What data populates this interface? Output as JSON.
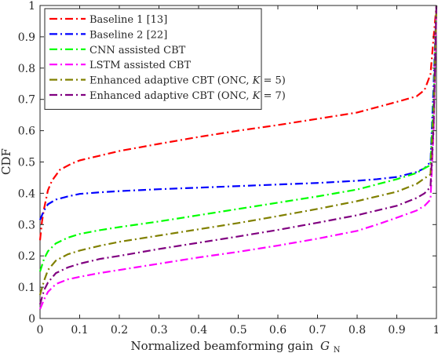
{
  "chart_data": {
    "type": "line",
    "xlabel": "Normalized beamforming gain",
    "xlabel_var": "G",
    "xlabel_sub": "N",
    "ylabel": "CDF",
    "xlim": [
      0,
      1
    ],
    "ylim": [
      0,
      1
    ],
    "x_ticks": [
      "0",
      "0.1",
      "0.2",
      "0.3",
      "0.4",
      "0.5",
      "0.6",
      "0.7",
      "0.8",
      "0.9",
      "1"
    ],
    "y_ticks": [
      "0",
      "0.1",
      "0.2",
      "0.3",
      "0.4",
      "0.5",
      "0.6",
      "0.7",
      "0.8",
      "0.9",
      "1"
    ],
    "grid": false,
    "legend_position": "top-left",
    "series": [
      {
        "name": "Baseline 1 [13]",
        "color": "#ff0000",
        "points": [
          [
            0,
            0.25
          ],
          [
            0.005,
            0.31
          ],
          [
            0.01,
            0.35
          ],
          [
            0.02,
            0.41
          ],
          [
            0.03,
            0.44
          ],
          [
            0.05,
            0.475
          ],
          [
            0.08,
            0.495
          ],
          [
            0.1,
            0.505
          ],
          [
            0.15,
            0.52
          ],
          [
            0.2,
            0.535
          ],
          [
            0.3,
            0.558
          ],
          [
            0.4,
            0.58
          ],
          [
            0.5,
            0.6
          ],
          [
            0.6,
            0.618
          ],
          [
            0.7,
            0.638
          ],
          [
            0.8,
            0.658
          ],
          [
            0.85,
            0.675
          ],
          [
            0.9,
            0.692
          ],
          [
            0.95,
            0.71
          ],
          [
            0.97,
            0.73
          ],
          [
            0.985,
            0.78
          ],
          [
            0.993,
            0.9
          ],
          [
            1.0,
            1.0
          ]
        ]
      },
      {
        "name": "Baseline 2 [22]",
        "color": "#0000ff",
        "points": [
          [
            0,
            0.315
          ],
          [
            0.01,
            0.345
          ],
          [
            0.02,
            0.365
          ],
          [
            0.04,
            0.38
          ],
          [
            0.07,
            0.39
          ],
          [
            0.1,
            0.398
          ],
          [
            0.15,
            0.403
          ],
          [
            0.2,
            0.407
          ],
          [
            0.3,
            0.413
          ],
          [
            0.4,
            0.418
          ],
          [
            0.5,
            0.423
          ],
          [
            0.6,
            0.428
          ],
          [
            0.7,
            0.433
          ],
          [
            0.8,
            0.44
          ],
          [
            0.85,
            0.445
          ],
          [
            0.9,
            0.452
          ],
          [
            0.95,
            0.468
          ],
          [
            0.97,
            0.48
          ],
          [
            0.985,
            0.5
          ],
          [
            0.993,
            0.75
          ],
          [
            1.0,
            1.0
          ]
        ]
      },
      {
        "name": "CNN assisted CBT",
        "color": "#00ff00",
        "points": [
          [
            0,
            0.15
          ],
          [
            0.01,
            0.19
          ],
          [
            0.02,
            0.215
          ],
          [
            0.04,
            0.24
          ],
          [
            0.07,
            0.258
          ],
          [
            0.1,
            0.27
          ],
          [
            0.15,
            0.282
          ],
          [
            0.2,
            0.292
          ],
          [
            0.3,
            0.31
          ],
          [
            0.4,
            0.33
          ],
          [
            0.5,
            0.35
          ],
          [
            0.6,
            0.37
          ],
          [
            0.7,
            0.39
          ],
          [
            0.8,
            0.412
          ],
          [
            0.9,
            0.445
          ],
          [
            0.95,
            0.465
          ],
          [
            0.97,
            0.48
          ],
          [
            0.985,
            0.49
          ],
          [
            0.993,
            0.7
          ],
          [
            1.0,
            1.0
          ]
        ]
      },
      {
        "name": "LSTM assisted CBT",
        "color": "#ff00ff",
        "points": [
          [
            0,
            0.03
          ],
          [
            0.01,
            0.06
          ],
          [
            0.02,
            0.085
          ],
          [
            0.04,
            0.11
          ],
          [
            0.07,
            0.125
          ],
          [
            0.1,
            0.133
          ],
          [
            0.15,
            0.145
          ],
          [
            0.2,
            0.155
          ],
          [
            0.3,
            0.175
          ],
          [
            0.4,
            0.195
          ],
          [
            0.5,
            0.213
          ],
          [
            0.6,
            0.233
          ],
          [
            0.7,
            0.255
          ],
          [
            0.8,
            0.28
          ],
          [
            0.85,
            0.3
          ],
          [
            0.9,
            0.322
          ],
          [
            0.95,
            0.345
          ],
          [
            0.97,
            0.36
          ],
          [
            0.985,
            0.38
          ],
          [
            0.993,
            0.6
          ],
          [
            1.0,
            1.0
          ]
        ]
      },
      {
        "name": "Enhanced adaptive CBT (ONC, K = 5)",
        "name_parts": [
          "Enhanced adaptive CBT (ONC, ",
          "K",
          " = 5)"
        ],
        "color": "#808000",
        "points": [
          [
            0,
            0.075
          ],
          [
            0.01,
            0.12
          ],
          [
            0.02,
            0.155
          ],
          [
            0.04,
            0.185
          ],
          [
            0.07,
            0.205
          ],
          [
            0.1,
            0.217
          ],
          [
            0.15,
            0.232
          ],
          [
            0.2,
            0.245
          ],
          [
            0.3,
            0.265
          ],
          [
            0.4,
            0.285
          ],
          [
            0.5,
            0.305
          ],
          [
            0.6,
            0.327
          ],
          [
            0.7,
            0.35
          ],
          [
            0.8,
            0.375
          ],
          [
            0.9,
            0.405
          ],
          [
            0.95,
            0.43
          ],
          [
            0.97,
            0.448
          ],
          [
            0.985,
            0.46
          ],
          [
            0.993,
            0.65
          ],
          [
            1.0,
            1.0
          ]
        ]
      },
      {
        "name": "Enhanced adaptive CBT (ONC, K = 7)",
        "name_parts": [
          "Enhanced adaptive CBT (ONC, ",
          "K",
          " = 7)"
        ],
        "color": "#800080",
        "points": [
          [
            0,
            0.045
          ],
          [
            0.01,
            0.09
          ],
          [
            0.02,
            0.115
          ],
          [
            0.04,
            0.145
          ],
          [
            0.07,
            0.163
          ],
          [
            0.1,
            0.175
          ],
          [
            0.15,
            0.19
          ],
          [
            0.2,
            0.2
          ],
          [
            0.3,
            0.222
          ],
          [
            0.4,
            0.242
          ],
          [
            0.5,
            0.262
          ],
          [
            0.6,
            0.283
          ],
          [
            0.7,
            0.306
          ],
          [
            0.8,
            0.33
          ],
          [
            0.9,
            0.36
          ],
          [
            0.95,
            0.385
          ],
          [
            0.97,
            0.4
          ],
          [
            0.985,
            0.42
          ],
          [
            0.993,
            0.62
          ],
          [
            1.0,
            1.0
          ]
        ]
      }
    ]
  }
}
